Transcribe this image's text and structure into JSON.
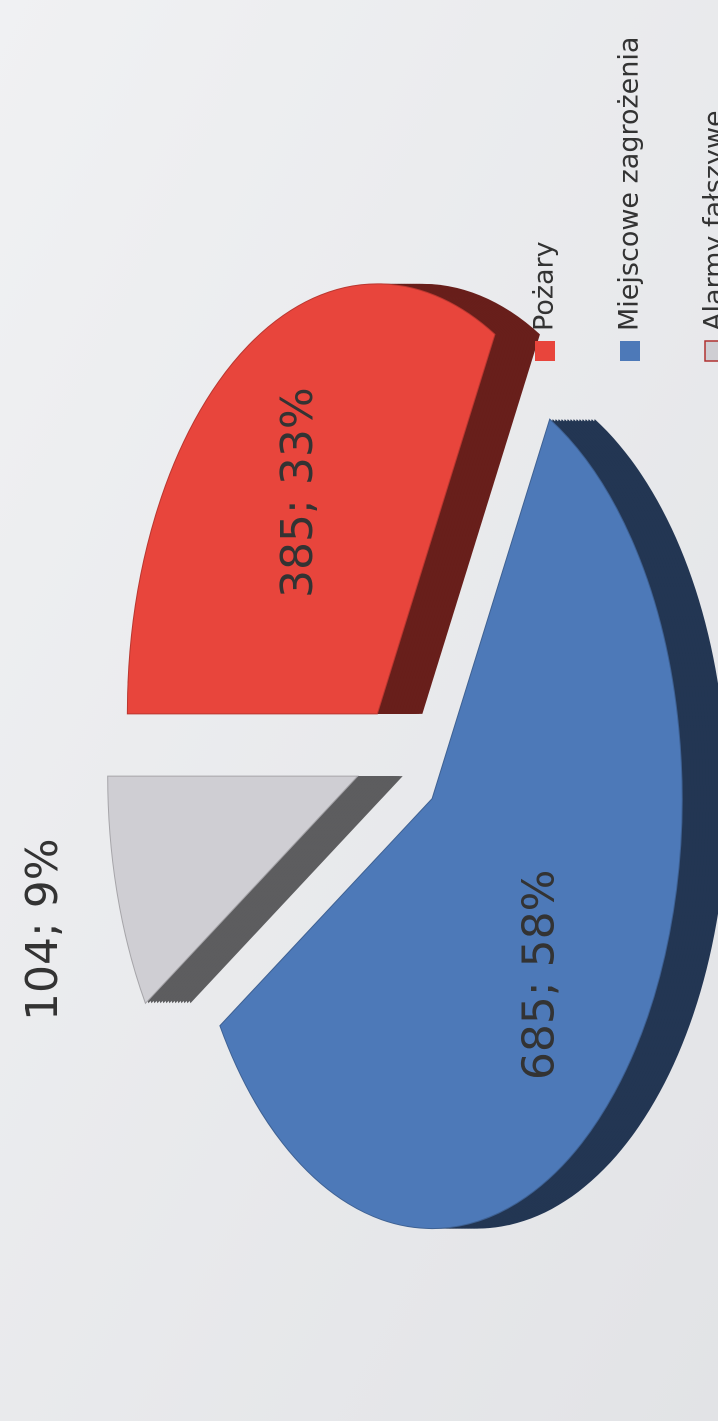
{
  "chart_data": {
    "type": "pie",
    "categories": [
      "Pożary",
      "Miejscowe zagrożenia",
      "Alarmy fałszywe"
    ],
    "values": [
      385,
      685,
      104
    ],
    "value_labels": [
      "385; 33%",
      "685; 58%",
      "104; 9%"
    ],
    "colors": [
      "#e8453c",
      "#4d79b8",
      "#cfced3"
    ],
    "legend": "right"
  }
}
